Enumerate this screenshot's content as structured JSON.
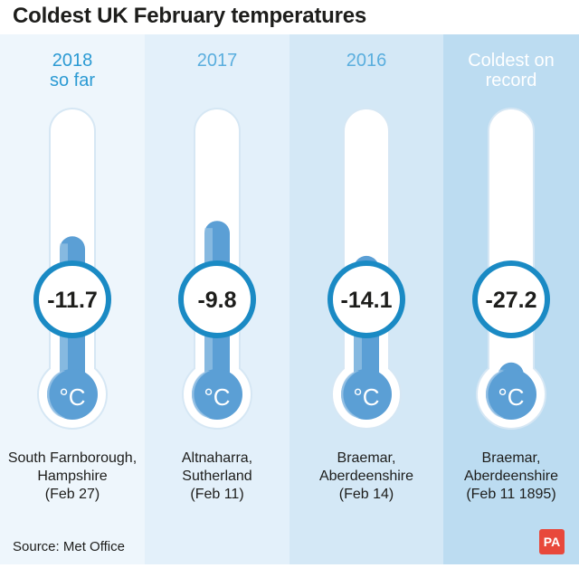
{
  "title": "Coldest UK February temperatures",
  "source": "Source: Met Office",
  "logo": "PA",
  "unit": "°C",
  "colors": {
    "mercury": "#5b9fd5",
    "mercury_light": "#a9cdea",
    "tube": "#ffffff",
    "ring": "#1a8ac4",
    "label": "#2b9ad3",
    "panel_backgrounds": [
      "#eef6fc",
      "#e3f0fa",
      "#d4e8f6",
      "#bcdcf1"
    ]
  },
  "chart_data": {
    "type": "bar",
    "title": "Coldest UK February temperatures",
    "categories": [
      "2018\nso far",
      "2017",
      "2016",
      "Coldest on\nrecord"
    ],
    "series": [
      {
        "values": [
          -11.7,
          -9.8,
          -14.1,
          -27.2
        ]
      }
    ],
    "value_labels": [
      "-11.7",
      "-9.8",
      "-14.1",
      "-27.2"
    ],
    "locations": [
      [
        "South Farnborough,",
        "Hampshire",
        "(Feb 27)"
      ],
      [
        "Altnaharra,",
        "Sutherland",
        "(Feb 11)"
      ],
      [
        "Braemar,",
        "Aberdeenshire",
        "(Feb 14)"
      ],
      [
        "Braemar,",
        "Aberdeenshire",
        "(Feb 11 1895)"
      ]
    ],
    "ylim": [
      -30,
      0
    ],
    "grid": false,
    "legend": "none"
  }
}
